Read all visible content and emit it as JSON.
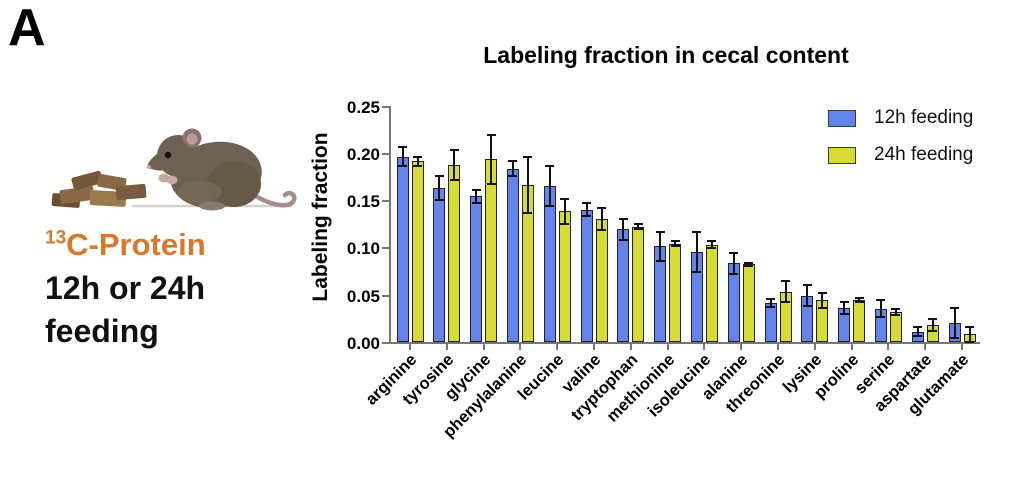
{
  "panel_label": "A",
  "left_panel": {
    "isotope_superscript": "13",
    "isotope_text": "C-Protein",
    "line2": "12h or 24h",
    "line3": "feeding",
    "accent_color": "#d9782c",
    "illustration_icons": [
      "food-pellet-pile-icon",
      "mouse-icon"
    ]
  },
  "chart_data": {
    "type": "bar",
    "title": "Labeling fraction in cecal content",
    "xlabel": "",
    "ylabel": "Labeling fraction",
    "ylim": [
      0,
      0.25
    ],
    "yticks": [
      0,
      0.05,
      0.1,
      0.15,
      0.2,
      0.25
    ],
    "grid": false,
    "legend_position": "top-right",
    "error_bars": "symmetric, mean ± sd, black",
    "axis_color": "#767676",
    "categories": [
      "arginine",
      "tyrosine",
      "glycine",
      "phenylalanine",
      "leucine",
      "valine",
      "tryptophan",
      "methionine",
      "isoleucine",
      "alanine",
      "threonine",
      "lysine",
      "proline",
      "serine",
      "aspartate",
      "glutamate"
    ],
    "series": [
      {
        "name": "12h feeding",
        "color": "#6384eb",
        "values": [
          0.196,
          0.163,
          0.154,
          0.183,
          0.165,
          0.14,
          0.119,
          0.101,
          0.095,
          0.083,
          0.041,
          0.049,
          0.036,
          0.035,
          0.011,
          0.02
        ],
        "errors": [
          0.01,
          0.013,
          0.007,
          0.008,
          0.021,
          0.007,
          0.011,
          0.015,
          0.021,
          0.011,
          0.004,
          0.011,
          0.006,
          0.009,
          0.005,
          0.016
        ]
      },
      {
        "name": "24h feeding",
        "color": "#d7db35",
        "values": [
          0.191,
          0.187,
          0.193,
          0.166,
          0.138,
          0.13,
          0.122,
          0.104,
          0.103,
          0.082,
          0.053,
          0.044,
          0.044,
          0.032,
          0.018,
          0.008
        ],
        "errors": [
          0.005,
          0.016,
          0.026,
          0.03,
          0.013,
          0.012,
          0.003,
          0.003,
          0.004,
          0.002,
          0.011,
          0.008,
          0.002,
          0.003,
          0.006,
          0.008
        ]
      }
    ]
  }
}
